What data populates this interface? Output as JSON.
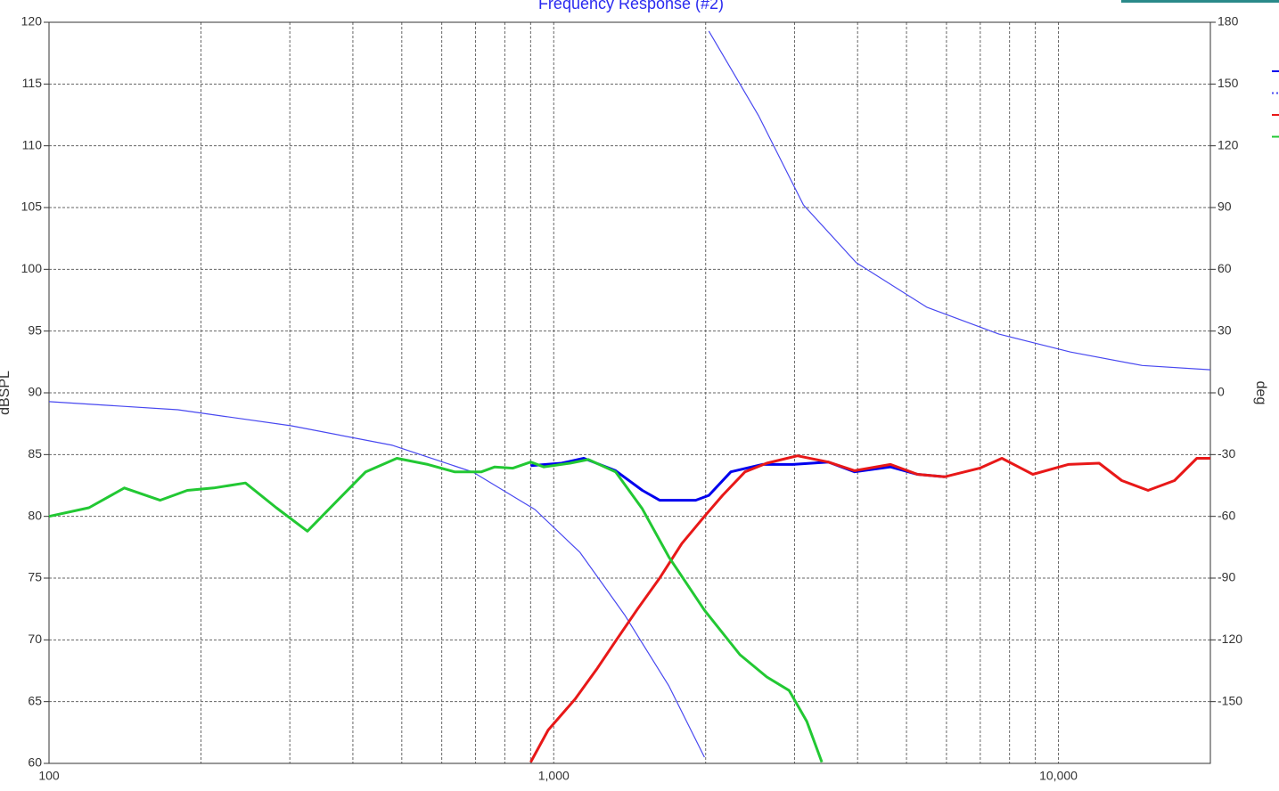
{
  "chart_data": {
    "type": "line",
    "title": "Frequency Response (#2)",
    "ylabel": "dBSPL",
    "y2label": "deg",
    "xscale": "log",
    "xlim": [
      100,
      20000
    ],
    "xticks": [
      100,
      {
        "value": 1000,
        "label": "1,000"
      },
      {
        "value": 10000,
        "label": "10,000"
      }
    ],
    "ylim": [
      60,
      120
    ],
    "yticks": [
      60,
      65,
      70,
      75,
      80,
      85,
      90,
      95,
      100,
      105,
      110,
      115,
      120
    ],
    "y2lim": [
      -180,
      180
    ],
    "y2ticks": [
      -150,
      -120,
      -90,
      -60,
      -30,
      0,
      30,
      60,
      90,
      120,
      150,
      180
    ],
    "grid": true,
    "legend": "right",
    "series": [
      {
        "color": "#0000ee",
        "width": 3,
        "x": [
          900,
          1036,
          1147,
          1326,
          1498,
          1621,
          1911,
          2029,
          2244,
          2589,
          2978,
          3499,
          3946,
          4647,
          5257,
          5947
        ],
        "values": [
          84.1,
          84.3,
          84.7,
          83.7,
          82.1,
          81.3,
          81.3,
          81.7,
          83.6,
          84.2,
          84.2,
          84.4,
          83.6,
          84.0,
          83.4,
          83.2
        ]
      },
      {
        "color": "#4848f0",
        "width": 1.2,
        "axis": "y2",
        "x": [
          100,
          180,
          302,
          479,
          692,
          918,
          1127,
          1381,
          1691,
          1989,
          null,
          2029,
          2546,
          3124,
          3976,
          5496,
          7622,
          10568,
          14656,
          20000
        ],
        "values": [
          -4.3,
          -8.2,
          -16,
          -25.5,
          -38.5,
          -56.7,
          -77.5,
          -107.8,
          -142.4,
          -177,
          null,
          175.7,
          134.6,
          91.3,
          63.2,
          41.5,
          28.5,
          19.8,
          13.3,
          11.2
        ]
      },
      {
        "color": "#e81818",
        "width": 3,
        "x": [
          900,
          975,
          1102,
          1220,
          1326,
          1466,
          1621,
          1794,
          1989,
          2160,
          2393,
          2642,
          3040,
          3499,
          3946,
          4647,
          5257,
          5947,
          6983,
          7725,
          8899,
          10455,
          12040,
          13348,
          15054,
          16979,
          18805,
          20000
        ],
        "values": [
          60.1,
          62.7,
          65.2,
          67.7,
          69.9,
          72.5,
          75.0,
          77.8,
          80.0,
          81.7,
          83.6,
          84.3,
          84.9,
          84.4,
          83.7,
          84.2,
          83.4,
          83.2,
          83.9,
          84.7,
          83.4,
          84.2,
          84.3,
          82.9,
          82.1,
          82.9,
          84.7,
          84.7
        ]
      },
      {
        "color": "#22c833",
        "width": 3,
        "x": [
          100,
          120,
          141,
          166,
          188,
          212,
          245,
          282,
          325,
          375,
          424,
          489,
          563,
          636,
          719,
          764,
          830,
          900,
          956,
          1077,
          1171,
          1326,
          1498,
          1691,
          1989,
          2339,
          2642,
          2927,
          3173,
          3398
        ],
        "values": [
          80.0,
          80.7,
          82.3,
          81.3,
          82.1,
          82.3,
          82.7,
          80.7,
          78.8,
          81.4,
          83.6,
          84.7,
          84.2,
          83.6,
          83.6,
          84.0,
          83.9,
          84.4,
          84.0,
          84.3,
          84.6,
          83.6,
          80.6,
          76.7,
          72.4,
          68.8,
          67.0,
          65.9,
          63.4,
          60.1
        ]
      }
    ]
  }
}
